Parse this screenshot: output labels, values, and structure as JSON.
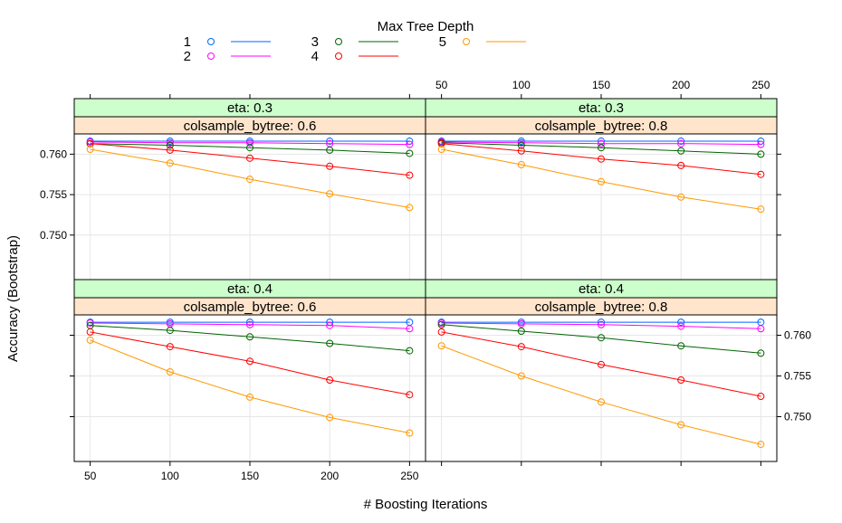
{
  "chart_data": {
    "type": "line",
    "xlabel": "# Boosting Iterations",
    "ylabel": "Accuracy (Bootstrap)",
    "x_ticks": [
      50,
      100,
      150,
      200,
      250
    ],
    "y_ticks": [
      0.75,
      0.755,
      0.76
    ],
    "y_tick_labels": [
      "0.750",
      "0.755",
      "0.760"
    ],
    "xlim": [
      40,
      260
    ],
    "ylim": [
      0.7445,
      0.7625
    ],
    "legend": {
      "title": "Max Tree Depth",
      "position": "top",
      "entries": [
        {
          "label": "1",
          "color": "#0066ff"
        },
        {
          "label": "2",
          "color": "#ff00ff"
        },
        {
          "label": "3",
          "color": "#006400"
        },
        {
          "label": "4",
          "color": "#ff0000"
        },
        {
          "label": "5",
          "color": "#ff9900"
        }
      ]
    },
    "panels": [
      {
        "eta_label": "eta: 0.3",
        "colsample_label": "colsample_bytree: 0.6",
        "series": [
          {
            "name": "1",
            "x": [
              50,
              100,
              150,
              200,
              250
            ],
            "y": [
              0.7616,
              0.7616,
              0.7616,
              0.7616,
              0.7616
            ]
          },
          {
            "name": "2",
            "x": [
              50,
              100,
              150,
              200,
              250
            ],
            "y": [
              0.7615,
              0.7614,
              0.7614,
              0.7613,
              0.7612
            ]
          },
          {
            "name": "3",
            "x": [
              50,
              100,
              150,
              200,
              250
            ],
            "y": [
              0.7613,
              0.7611,
              0.7608,
              0.7605,
              0.7601
            ]
          },
          {
            "name": "4",
            "x": [
              50,
              100,
              150,
              200,
              250
            ],
            "y": [
              0.7613,
              0.7605,
              0.7595,
              0.7585,
              0.7574
            ]
          },
          {
            "name": "5",
            "x": [
              50,
              100,
              150,
              200,
              250
            ],
            "y": [
              0.7606,
              0.7589,
              0.7569,
              0.7551,
              0.7534
            ]
          }
        ]
      },
      {
        "eta_label": "eta: 0.3",
        "colsample_label": "colsample_bytree: 0.8",
        "series": [
          {
            "name": "1",
            "x": [
              50,
              100,
              150,
              200,
              250
            ],
            "y": [
              0.7616,
              0.7616,
              0.7616,
              0.7616,
              0.7616
            ]
          },
          {
            "name": "2",
            "x": [
              50,
              100,
              150,
              200,
              250
            ],
            "y": [
              0.7615,
              0.7614,
              0.7613,
              0.7613,
              0.7612
            ]
          },
          {
            "name": "3",
            "x": [
              50,
              100,
              150,
              200,
              250
            ],
            "y": [
              0.7614,
              0.7611,
              0.7608,
              0.7604,
              0.76
            ]
          },
          {
            "name": "4",
            "x": [
              50,
              100,
              150,
              200,
              250
            ],
            "y": [
              0.7613,
              0.7604,
              0.7594,
              0.7586,
              0.7575
            ]
          },
          {
            "name": "5",
            "x": [
              50,
              100,
              150,
              200,
              250
            ],
            "y": [
              0.7606,
              0.7587,
              0.7566,
              0.7547,
              0.7532
            ]
          }
        ]
      },
      {
        "eta_label": "eta: 0.4",
        "colsample_label": "colsample_bytree: 0.6",
        "series": [
          {
            "name": "1",
            "x": [
              50,
              100,
              150,
              200,
              250
            ],
            "y": [
              0.7616,
              0.7616,
              0.7616,
              0.7616,
              0.7616
            ]
          },
          {
            "name": "2",
            "x": [
              50,
              100,
              150,
              200,
              250
            ],
            "y": [
              0.7615,
              0.7614,
              0.7613,
              0.7612,
              0.7608
            ]
          },
          {
            "name": "3",
            "x": [
              50,
              100,
              150,
              200,
              250
            ],
            "y": [
              0.7612,
              0.7606,
              0.7598,
              0.759,
              0.7581
            ]
          },
          {
            "name": "4",
            "x": [
              50,
              100,
              150,
              200,
              250
            ],
            "y": [
              0.7604,
              0.7586,
              0.7568,
              0.7545,
              0.7527
            ]
          },
          {
            "name": "5",
            "x": [
              50,
              100,
              150,
              200,
              250
            ],
            "y": [
              0.7594,
              0.7555,
              0.7524,
              0.7499,
              0.748
            ]
          }
        ]
      },
      {
        "eta_label": "eta: 0.4",
        "colsample_label": "colsample_bytree: 0.8",
        "series": [
          {
            "name": "1",
            "x": [
              50,
              100,
              150,
              200,
              250
            ],
            "y": [
              0.7616,
              0.7616,
              0.7616,
              0.7616,
              0.7616
            ]
          },
          {
            "name": "2",
            "x": [
              50,
              100,
              150,
              200,
              250
            ],
            "y": [
              0.7615,
              0.7614,
              0.7613,
              0.7611,
              0.7608
            ]
          },
          {
            "name": "3",
            "x": [
              50,
              100,
              150,
              200,
              250
            ],
            "y": [
              0.7613,
              0.7605,
              0.7597,
              0.7587,
              0.7578
            ]
          },
          {
            "name": "4",
            "x": [
              50,
              100,
              150,
              200,
              250
            ],
            "y": [
              0.7604,
              0.7586,
              0.7564,
              0.7545,
              0.7525
            ]
          },
          {
            "name": "5",
            "x": [
              50,
              100,
              150,
              200,
              250
            ],
            "y": [
              0.7587,
              0.755,
              0.7518,
              0.749,
              0.7466
            ]
          }
        ]
      }
    ]
  }
}
